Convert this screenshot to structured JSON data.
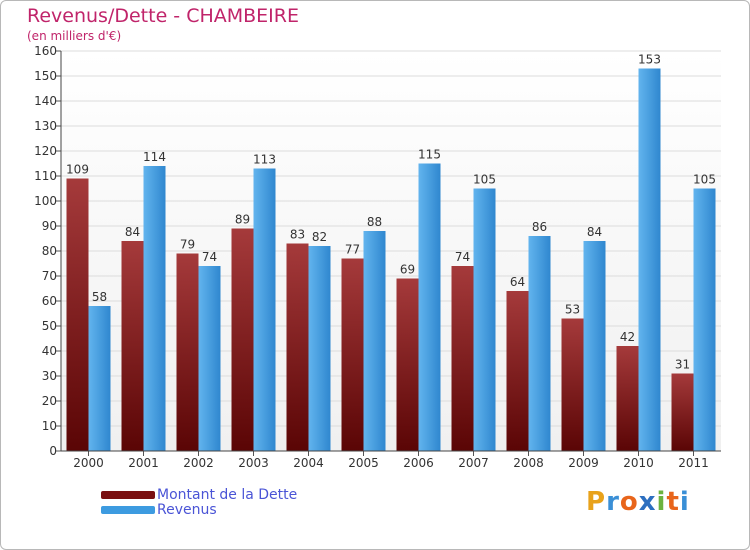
{
  "chart_data": {
    "type": "bar",
    "title": "Revenus/Dette - CHAMBEIRE",
    "subtitle": "(en milliers d'€)",
    "categories": [
      "2000",
      "2001",
      "2002",
      "2003",
      "2004",
      "2005",
      "2006",
      "2007",
      "2008",
      "2009",
      "2010",
      "2011"
    ],
    "series": [
      {
        "name": "Montant de la Dette",
        "color": "#7a0f10",
        "values": [
          109,
          84,
          79,
          89,
          83,
          77,
          69,
          74,
          64,
          53,
          42,
          31
        ]
      },
      {
        "name": "Revenus",
        "color": "#3d9be0",
        "values": [
          58,
          114,
          74,
          113,
          82,
          88,
          115,
          105,
          86,
          84,
          153,
          105
        ]
      }
    ],
    "ylim": [
      0,
      160
    ],
    "ytick_step": 10,
    "grid": true,
    "legend": "bottom-left"
  },
  "logo": {
    "text": "Proxiti"
  }
}
